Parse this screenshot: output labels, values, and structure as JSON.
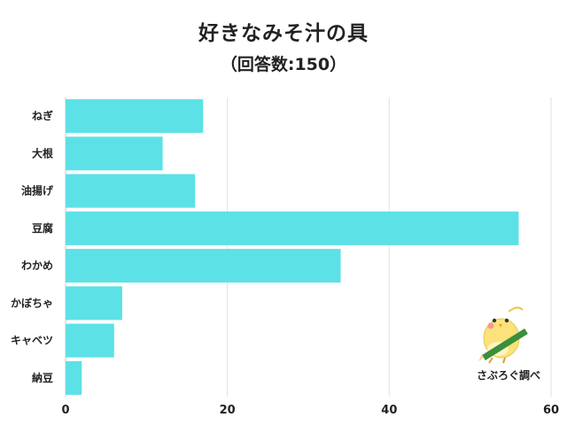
{
  "chart_data": {
    "type": "bar",
    "orientation": "horizontal",
    "title": "好きなみそ汁の具",
    "subtitle": "（回答数:150）",
    "categories": [
      "ねぎ",
      "大根",
      "油揚げ",
      "豆腐",
      "わかめ",
      "かぼちゃ",
      "キャベツ",
      "納豆"
    ],
    "values": [
      17,
      12,
      16,
      56,
      34,
      7,
      6,
      2
    ],
    "xlim": [
      0,
      60
    ],
    "xticks": [
      "0",
      "20",
      "40",
      "60"
    ],
    "grid": true,
    "bar_color": "#5ce1e6"
  },
  "brand": {
    "label": "さぶろぐ調べ",
    "icon": "bird-with-pencil-icon"
  }
}
